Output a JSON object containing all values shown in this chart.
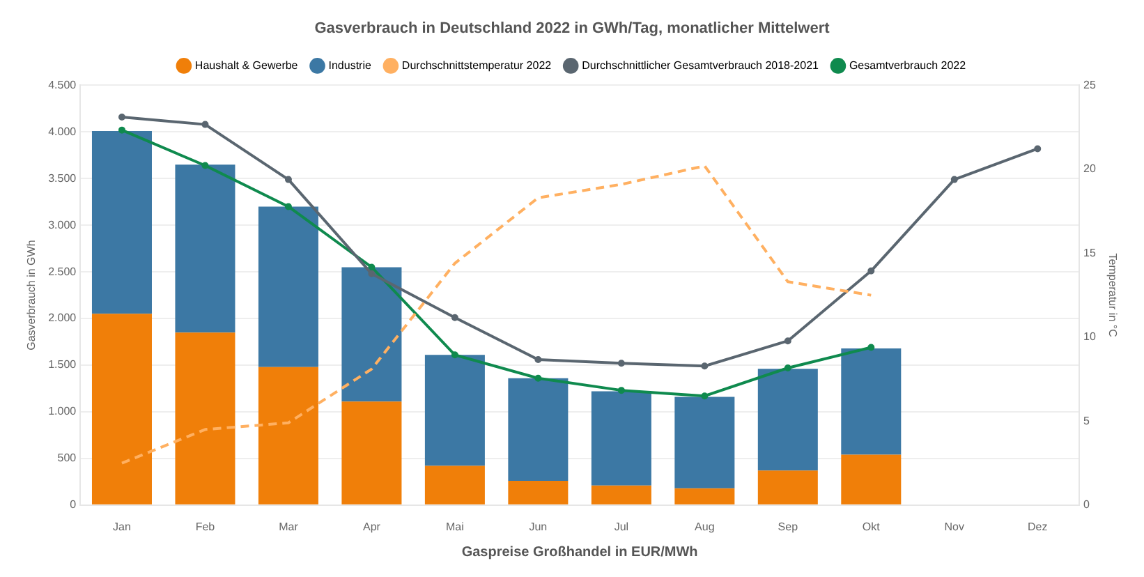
{
  "chart_data": {
    "type": "bar",
    "title": "Gasverbrauch in Deutschland 2022 in GWh/Tag, monatlicher Mittelwert",
    "xlabel": "Gaspreise Großhandel in EUR/MWh",
    "ylabel": "Gasverbrauch in GWh",
    "y2label": "Temperatur in °C",
    "categories": [
      "Jan",
      "Feb",
      "Mar",
      "Apr",
      "Mai",
      "Jun",
      "Jul",
      "Aug",
      "Sep",
      "Okt",
      "Nov",
      "Dez"
    ],
    "stacked": true,
    "series": [
      {
        "name": "Haushalt & Gewerbe",
        "color": "#f07f09",
        "values": [
          2050,
          1850,
          1480,
          1110,
          420,
          260,
          210,
          180,
          370,
          540,
          null,
          null
        ]
      },
      {
        "name": "Industrie",
        "color": "#3c78a4",
        "values": [
          1960,
          1800,
          1720,
          1440,
          1190,
          1100,
          1010,
          980,
          1090,
          1140,
          null,
          null
        ]
      },
      {
        "name": "Durchschnittstemperatur 2022",
        "type": "line",
        "axis": "y2",
        "color": "#ffb061",
        "line_style": "dashed",
        "marker": "none",
        "values": [
          2.5,
          4.5,
          4.9,
          8.1,
          14.4,
          18.3,
          19.1,
          20.2,
          13.3,
          12.5,
          null,
          null
        ]
      },
      {
        "name": "Durchschnittlicher Gesamtverbrauch 2018-2021",
        "type": "line",
        "color": "#5a6670",
        "line_style": "solid",
        "marker": "circle",
        "values": [
          4160,
          4080,
          3490,
          2480,
          2010,
          1560,
          1520,
          1490,
          1760,
          2510,
          3490,
          3820
        ]
      },
      {
        "name": "Gesamtverbrauch 2022",
        "type": "line",
        "color": "#0f8a4e",
        "line_style": "solid",
        "marker": "circle",
        "values": [
          4020,
          3640,
          3200,
          2550,
          1610,
          1360,
          1230,
          1170,
          1470,
          1690,
          null,
          null
        ]
      }
    ],
    "ylim": [
      0,
      4500
    ],
    "yticks": [
      0,
      500,
      {
        "value": 1000,
        "label": "1.000"
      },
      {
        "value": 1500,
        "label": "1.500"
      },
      {
        "value": 2000,
        "label": "2.000"
      },
      {
        "value": 2500,
        "label": "2.500"
      },
      {
        "value": 3000,
        "label": "3.000"
      },
      {
        "value": 3500,
        "label": "3.500"
      },
      {
        "value": 4000,
        "label": "4.000"
      },
      {
        "value": 4500,
        "label": "4.500"
      }
    ],
    "y2lim": [
      0,
      25
    ],
    "y2ticks": [
      0,
      5,
      10,
      15,
      20,
      25
    ],
    "grid": "y",
    "legend": "top"
  }
}
